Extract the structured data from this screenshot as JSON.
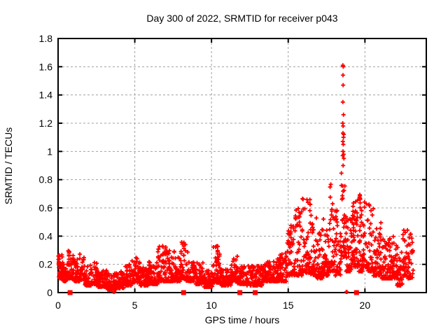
{
  "chart_data": {
    "type": "scatter",
    "title": "Day 300 of 2022, SRMTID for receiver p043",
    "xlabel": "GPS time / hours",
    "ylabel": "SRMTID / TECUs",
    "xlim": [
      0,
      24
    ],
    "ylim": [
      0,
      1.8
    ],
    "xticks": [
      0,
      5,
      10,
      15,
      20
    ],
    "xtick_labels": [
      "0",
      "5",
      "10",
      "15",
      "20"
    ],
    "yticks": [
      0,
      0.2,
      0.4,
      0.6,
      0.8,
      1.0,
      1.2,
      1.4,
      1.6,
      1.8
    ],
    "ytick_labels": [
      "0",
      "0.2",
      "0.4",
      "0.6",
      "0.8",
      "1",
      "1.2",
      "1.4",
      "1.6",
      "1.8"
    ],
    "grid": true,
    "legend": "none",
    "marker": "plus",
    "marker_color": "#ff0000",
    "grid_color": "#a0a0a0",
    "border_color": "#000000",
    "background": "#ffffff",
    "seed": 1234,
    "points_per_hour": 120,
    "series_envelope": [
      [
        0.02,
        0.3,
        0.1,
        0.27
      ],
      [
        0.3,
        0.6,
        0.08,
        0.22
      ],
      [
        0.6,
        1.0,
        0.1,
        0.3
      ],
      [
        1.0,
        1.4,
        0.08,
        0.25
      ],
      [
        1.4,
        1.75,
        0.09,
        0.28
      ],
      [
        1.75,
        2.2,
        0.05,
        0.2
      ],
      [
        2.2,
        2.6,
        0.06,
        0.22
      ],
      [
        2.6,
        3.2,
        0.04,
        0.16
      ],
      [
        3.2,
        3.8,
        0.02,
        0.14
      ],
      [
        3.8,
        4.3,
        0.03,
        0.15
      ],
      [
        4.3,
        4.8,
        0.05,
        0.2
      ],
      [
        4.8,
        5.35,
        0.07,
        0.25
      ],
      [
        5.35,
        5.9,
        0.05,
        0.18
      ],
      [
        5.9,
        6.5,
        0.06,
        0.22
      ],
      [
        6.5,
        7.15,
        0.08,
        0.33
      ],
      [
        7.15,
        7.6,
        0.08,
        0.3
      ],
      [
        7.6,
        8.0,
        0.08,
        0.25
      ],
      [
        8.0,
        8.35,
        0.1,
        0.38
      ],
      [
        8.35,
        8.9,
        0.08,
        0.3
      ],
      [
        8.9,
        9.5,
        0.06,
        0.22
      ],
      [
        9.5,
        10.1,
        0.04,
        0.16
      ],
      [
        10.1,
        10.6,
        0.07,
        0.33
      ],
      [
        10.6,
        11.3,
        0.05,
        0.18
      ],
      [
        11.3,
        11.7,
        0.08,
        0.26
      ],
      [
        11.7,
        12.3,
        0.06,
        0.2
      ],
      [
        12.3,
        13.35,
        0.05,
        0.19
      ],
      [
        13.35,
        14.3,
        0.08,
        0.22
      ],
      [
        14.3,
        14.9,
        0.08,
        0.28
      ],
      [
        14.9,
        15.4,
        0.12,
        0.52
      ],
      [
        15.4,
        15.9,
        0.12,
        0.6
      ],
      [
        15.9,
        16.45,
        0.14,
        0.67
      ],
      [
        16.45,
        16.85,
        0.12,
        0.55
      ],
      [
        16.85,
        17.25,
        0.1,
        0.45
      ],
      [
        17.25,
        17.6,
        0.12,
        0.55
      ],
      [
        17.6,
        17.95,
        0.15,
        0.78
      ],
      [
        17.95,
        18.45,
        0.12,
        0.6
      ],
      [
        18.45,
        18.75,
        0.25,
        0.92
      ],
      [
        18.75,
        19.1,
        0.15,
        0.55
      ],
      [
        19.1,
        19.55,
        0.18,
        0.68
      ],
      [
        19.55,
        19.85,
        0.15,
        0.72
      ],
      [
        19.85,
        20.2,
        0.18,
        0.65
      ],
      [
        20.2,
        20.55,
        0.15,
        0.7
      ],
      [
        20.55,
        21.1,
        0.12,
        0.5
      ],
      [
        21.1,
        21.6,
        0.1,
        0.38
      ],
      [
        21.6,
        22.1,
        0.1,
        0.4
      ],
      [
        22.1,
        22.45,
        0.05,
        0.33
      ],
      [
        22.45,
        22.8,
        0.12,
        0.48
      ],
      [
        22.8,
        23.15,
        0.1,
        0.42
      ]
    ],
    "spike_points": [
      [
        18.56,
        1.61
      ],
      [
        18.59,
        1.6
      ],
      [
        18.57,
        1.54
      ],
      [
        18.58,
        1.47
      ],
      [
        18.56,
        1.35
      ],
      [
        18.6,
        1.26
      ],
      [
        18.55,
        1.2
      ],
      [
        18.58,
        1.18
      ],
      [
        18.57,
        1.13
      ],
      [
        18.62,
        1.12
      ],
      [
        18.6,
        1.1
      ],
      [
        18.56,
        1.07
      ],
      [
        18.59,
        1.05
      ],
      [
        18.57,
        1.0
      ],
      [
        18.61,
        0.98
      ],
      [
        18.55,
        0.97
      ],
      [
        18.63,
        0.95
      ],
      [
        18.58,
        0.9
      ]
    ],
    "zero_squares": [
      0.78,
      8.18,
      11.85,
      12.85,
      19.45
    ],
    "near_zero_points": [
      3.62,
      3.66,
      18.78,
      18.83
    ]
  }
}
